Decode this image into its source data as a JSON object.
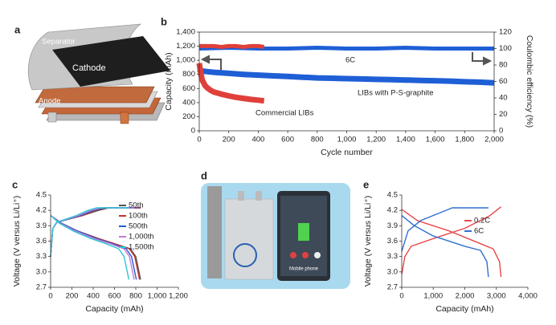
{
  "figure": {
    "panels": [
      "a",
      "d"
    ],
    "illustration_labels": [
      "Separator",
      "Cathode",
      "Anode"
    ],
    "photo_labels": [
      "Mobile phone"
    ]
  },
  "chart_data": [
    {
      "type": "line",
      "panel": "b",
      "xlabel": "Cycle number",
      "ylabel": "Capacity (mAh)",
      "y2label": "Coulombic efficiency (%)",
      "annotations": [
        "6C"
      ],
      "xlim": [
        0,
        2000
      ],
      "xticks": [
        0,
        200,
        400,
        600,
        800,
        {
          "value": 1000,
          "label": "1,000"
        },
        {
          "value": 1200,
          "label": "1,200"
        },
        {
          "value": 1400,
          "label": "1,400"
        },
        {
          "value": 1600,
          "label": "1,600"
        },
        {
          "value": 1800,
          "label": "1,800"
        },
        {
          "value": 2000,
          "label": "2,000"
        }
      ],
      "ylim": [
        0,
        1400
      ],
      "yticks": [
        0,
        200,
        400,
        600,
        800,
        {
          "value": 1000,
          "label": "1,000"
        },
        {
          "value": 1200,
          "label": "1,200"
        },
        {
          "value": 1400,
          "label": "1,400"
        }
      ],
      "y2lim": [
        0,
        120
      ],
      "y2ticks": [
        0,
        20,
        40,
        60,
        80,
        100,
        120
      ],
      "series": [
        {
          "color": "#1f5fd6",
          "axis": "y2",
          "x": [
            0,
            200,
            400,
            600,
            800,
            1000,
            1200,
            1400,
            1600,
            1800,
            2000
          ],
          "values": [
            100,
            101,
            100,
            100,
            101,
            100,
            100,
            101,
            100,
            100,
            100
          ]
        },
        {
          "color": "#e0403a",
          "axis": "y2",
          "x": [
            0,
            50,
            100,
            150,
            200,
            250,
            300,
            350,
            400,
            440
          ],
          "values": [
            103,
            103,
            103,
            102,
            103,
            103,
            102,
            103,
            103,
            102
          ]
        },
        {
          "name": "LIBs with P-S-graphite",
          "color": "#1f5fd6",
          "x": [
            0,
            10,
            50,
            100,
            200,
            300,
            400,
            500,
            600,
            700,
            800,
            900,
            1000,
            1100,
            1200,
            1300,
            1400,
            1500,
            1600,
            1700,
            1800,
            1900,
            2000
          ],
          "values": [
            820,
            850,
            840,
            830,
            815,
            800,
            790,
            780,
            770,
            760,
            750,
            745,
            740,
            735,
            730,
            725,
            720,
            715,
            710,
            705,
            695,
            690,
            680
          ]
        },
        {
          "name": "Commercial LIBs",
          "color": "#e0403a",
          "x": [
            0,
            10,
            20,
            40,
            60,
            80,
            100,
            150,
            200,
            250,
            300,
            350,
            400,
            440
          ],
          "values": [
            960,
            820,
            720,
            640,
            600,
            570,
            550,
            520,
            495,
            475,
            460,
            445,
            435,
            425
          ]
        }
      ]
    },
    {
      "type": "line",
      "panel": "c",
      "xlabel": "Capacity (mAh)",
      "ylabel": "Voltage (V versus Li/Li⁺)",
      "legend": "right",
      "xlim": [
        0,
        1200
      ],
      "xticks": [
        0,
        200,
        400,
        600,
        800,
        {
          "value": 1000,
          "label": "1,000"
        },
        {
          "value": 1200,
          "label": "1,200"
        }
      ],
      "ylim": [
        2.7,
        4.5
      ],
      "yticks": [
        2.7,
        {
          "value": 3,
          "label": "3.0"
        },
        3.3,
        3.6,
        3.9,
        4.2,
        4.5
      ],
      "series": [
        {
          "name": "50th",
          "color": "#555555",
          "x": [
            0,
            20,
            60,
            150,
            300,
            450,
            550,
            850,
            null,
            0,
            100,
            250,
            450,
            600,
            750,
            800,
            830,
            845
          ],
          "values": [
            3.3,
            3.85,
            3.97,
            4.02,
            4.1,
            4.2,
            4.25,
            4.25,
            null,
            4.1,
            3.95,
            3.8,
            3.65,
            3.55,
            3.45,
            3.3,
            3.0,
            2.85
          ]
        },
        {
          "name": "100th",
          "color": "#c8322d",
          "x": [
            0,
            20,
            60,
            150,
            300,
            420,
            520,
            840,
            null,
            0,
            100,
            250,
            450,
            600,
            740,
            790,
            820,
            835
          ],
          "values": [
            3.3,
            3.85,
            3.97,
            4.02,
            4.1,
            4.2,
            4.25,
            4.25,
            null,
            4.1,
            3.95,
            3.8,
            3.65,
            3.55,
            3.45,
            3.3,
            3.0,
            2.85
          ]
        },
        {
          "name": "500th",
          "color": "#1f5fd6",
          "x": [
            0,
            20,
            60,
            150,
            280,
            400,
            500,
            810,
            null,
            0,
            100,
            250,
            430,
            580,
            710,
            760,
            790,
            805
          ],
          "values": [
            3.3,
            3.85,
            3.97,
            4.02,
            4.1,
            4.2,
            4.25,
            4.25,
            null,
            4.1,
            3.95,
            3.8,
            3.65,
            3.55,
            3.45,
            3.3,
            3.0,
            2.85
          ]
        },
        {
          "name": "1,000th",
          "color": "#c07ad8",
          "x": [
            0,
            20,
            60,
            140,
            260,
            380,
            470,
            790,
            null,
            0,
            90,
            230,
            410,
            560,
            690,
            740,
            770,
            785
          ],
          "values": [
            3.3,
            3.85,
            3.97,
            4.02,
            4.1,
            4.2,
            4.25,
            4.25,
            null,
            4.1,
            3.95,
            3.8,
            3.65,
            3.55,
            3.45,
            3.3,
            3.0,
            2.85
          ]
        },
        {
          "name": "1,500th",
          "color": "#2ec6d8",
          "x": [
            0,
            20,
            55,
            130,
            240,
            350,
            430,
            740,
            null,
            0,
            80,
            210,
            380,
            520,
            640,
            690,
            720,
            735
          ],
          "values": [
            3.3,
            3.85,
            3.97,
            4.02,
            4.1,
            4.2,
            4.25,
            4.25,
            null,
            4.1,
            3.95,
            3.8,
            3.65,
            3.55,
            3.45,
            3.3,
            3.0,
            2.85
          ]
        }
      ]
    },
    {
      "type": "line",
      "panel": "e",
      "xlabel": "Capacity (mAh)",
      "ylabel": "Voltage (V versus Li/Li⁺)",
      "legend": "right",
      "xlim": [
        0,
        4000
      ],
      "xticks": [
        0,
        {
          "value": 1000,
          "label": "1,000"
        },
        {
          "value": 2000,
          "label": "2,000"
        },
        {
          "value": 3000,
          "label": "3,000"
        },
        {
          "value": 4000,
          "label": "4,000"
        }
      ],
      "ylim": [
        2.7,
        4.5
      ],
      "yticks": [
        2.7,
        {
          "value": 3,
          "label": "3.0"
        },
        3.3,
        3.6,
        3.9,
        4.2,
        4.5
      ],
      "series": [
        {
          "name": "0.2C",
          "color": "#e8474a",
          "x": [
            0,
            100,
            300,
            1000,
            2000,
            2800,
            3150,
            null,
            0,
            500,
            1500,
            2500,
            2900,
            3100,
            3150
          ],
          "values": [
            2.95,
            3.3,
            3.5,
            3.65,
            3.85,
            4.1,
            4.27,
            null,
            4.22,
            4.0,
            3.8,
            3.55,
            3.45,
            3.2,
            2.9
          ]
        },
        {
          "name": "6C",
          "color": "#2f6fd0",
          "x": [
            0,
            200,
            600,
            1200,
            1600,
            2750,
            null,
            0,
            400,
            1000,
            2000,
            2500,
            2700,
            2750
          ],
          "values": [
            3.4,
            3.8,
            4.0,
            4.15,
            4.25,
            4.25,
            null,
            4.1,
            3.9,
            3.7,
            3.5,
            3.42,
            3.2,
            2.9
          ]
        }
      ]
    }
  ]
}
